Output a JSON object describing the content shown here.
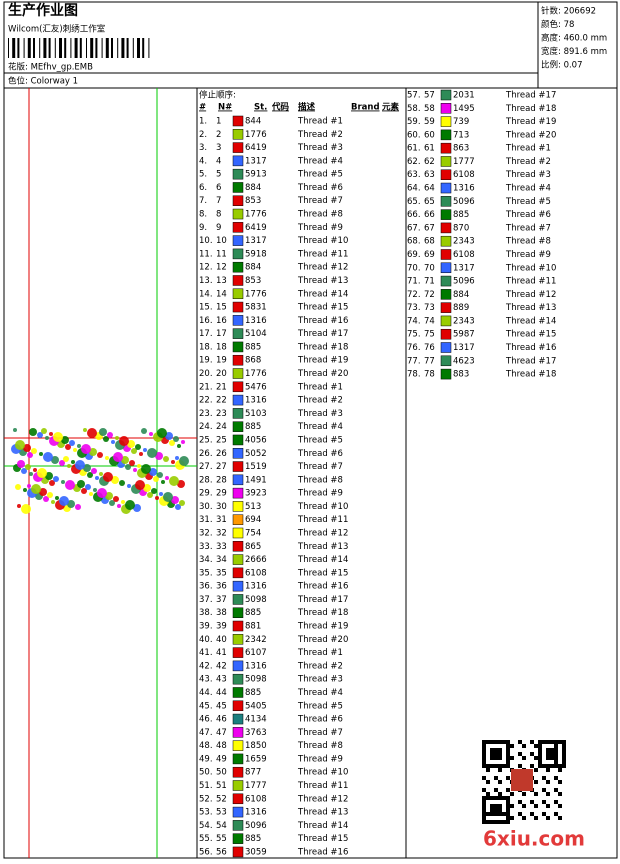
{
  "header": {
    "title": "生产作业图",
    "studio": "Wilcom(汇友)刺绣工作室",
    "design": "花版: MEfhv_gp.EMB",
    "colorway": "色位: Colorway 1"
  },
  "stats": [
    "针数: 206692",
    "颜色: 78",
    "高度: 460.0 mm",
    "宽度: 891.6 mm",
    "比例: 0.07"
  ],
  "table": {
    "caption": "停止顺序:",
    "columns": [
      "#",
      "N#",
      "St.",
      "代码",
      "描述",
      "Brand",
      "元素"
    ],
    "rows": [
      [
        "1.",
        "1",
        "844",
        "Thread #1",
        "#e00000"
      ],
      [
        "2.",
        "2",
        "1776",
        "Thread #2",
        "#99cc00"
      ],
      [
        "3.",
        "3",
        "6419",
        "Thread #3",
        "#e00000"
      ],
      [
        "4.",
        "4",
        "1317",
        "Thread #4",
        "#3366ff"
      ],
      [
        "5.",
        "5",
        "5913",
        "Thread #5",
        "#2e8b57"
      ],
      [
        "6.",
        "6",
        "884",
        "Thread #6",
        "#007a00"
      ],
      [
        "7.",
        "7",
        "853",
        "Thread #7",
        "#e00000"
      ],
      [
        "8.",
        "8",
        "1776",
        "Thread #8",
        "#99cc00"
      ],
      [
        "9.",
        "9",
        "6419",
        "Thread #9",
        "#e00000"
      ],
      [
        "10.",
        "10",
        "1317",
        "Thread #10",
        "#3366ff"
      ],
      [
        "11.",
        "11",
        "5918",
        "Thread #11",
        "#2e8b57"
      ],
      [
        "12.",
        "12",
        "884",
        "Thread #12",
        "#007a00"
      ],
      [
        "13.",
        "13",
        "853",
        "Thread #13",
        "#e00000"
      ],
      [
        "14.",
        "14",
        "1776",
        "Thread #14",
        "#99cc00"
      ],
      [
        "15.",
        "15",
        "5831",
        "Thread #15",
        "#e00000"
      ],
      [
        "16.",
        "16",
        "1316",
        "Thread #16",
        "#3366ff"
      ],
      [
        "17.",
        "17",
        "5104",
        "Thread #17",
        "#2e8b57"
      ],
      [
        "18.",
        "18",
        "885",
        "Thread #18",
        "#007a00"
      ],
      [
        "19.",
        "19",
        "868",
        "Thread #19",
        "#e00000"
      ],
      [
        "20.",
        "20",
        "1776",
        "Thread #20",
        "#99cc00"
      ],
      [
        "21.",
        "21",
        "5476",
        "Thread #1",
        "#e00000"
      ],
      [
        "22.",
        "22",
        "1316",
        "Thread #2",
        "#3366ff"
      ],
      [
        "23.",
        "23",
        "5103",
        "Thread #3",
        "#2e8b57"
      ],
      [
        "24.",
        "24",
        "885",
        "Thread #4",
        "#007a00"
      ],
      [
        "25.",
        "25",
        "4056",
        "Thread #5",
        "#007a00"
      ],
      [
        "26.",
        "26",
        "5052",
        "Thread #6",
        "#3366ff"
      ],
      [
        "27.",
        "27",
        "1519",
        "Thread #7",
        "#e00000"
      ],
      [
        "28.",
        "28",
        "1491",
        "Thread #8",
        "#3366ff"
      ],
      [
        "29.",
        "29",
        "3923",
        "Thread #9",
        "#ee00ee"
      ],
      [
        "30.",
        "30",
        "513",
        "Thread #10",
        "#ffff00"
      ],
      [
        "31.",
        "31",
        "694",
        "Thread #11",
        "#ff9900"
      ],
      [
        "32.",
        "32",
        "754",
        "Thread #12",
        "#ffff00"
      ],
      [
        "33.",
        "33",
        "865",
        "Thread #13",
        "#e00000"
      ],
      [
        "34.",
        "34",
        "2666",
        "Thread #14",
        "#99cc00"
      ],
      [
        "35.",
        "35",
        "6108",
        "Thread #15",
        "#e00000"
      ],
      [
        "36.",
        "36",
        "1316",
        "Thread #16",
        "#3366ff"
      ],
      [
        "37.",
        "37",
        "5098",
        "Thread #17",
        "#2e8b57"
      ],
      [
        "38.",
        "38",
        "885",
        "Thread #18",
        "#007a00"
      ],
      [
        "39.",
        "39",
        "881",
        "Thread #19",
        "#e00000"
      ],
      [
        "40.",
        "40",
        "2342",
        "Thread #20",
        "#99cc00"
      ],
      [
        "41.",
        "41",
        "6107",
        "Thread #1",
        "#e00000"
      ],
      [
        "42.",
        "42",
        "1316",
        "Thread #2",
        "#3366ff"
      ],
      [
        "43.",
        "43",
        "5098",
        "Thread #3",
        "#2e8b57"
      ],
      [
        "44.",
        "44",
        "885",
        "Thread #4",
        "#007a00"
      ],
      [
        "45.",
        "45",
        "5405",
        "Thread #5",
        "#e00000"
      ],
      [
        "46.",
        "46",
        "4134",
        "Thread #6",
        "#1b7f7f"
      ],
      [
        "47.",
        "47",
        "3763",
        "Thread #7",
        "#ee00ee"
      ],
      [
        "48.",
        "48",
        "1850",
        "Thread #8",
        "#ffff00"
      ],
      [
        "49.",
        "49",
        "1659",
        "Thread #9",
        "#007a00"
      ],
      [
        "50.",
        "50",
        "877",
        "Thread #10",
        "#e00000"
      ],
      [
        "51.",
        "51",
        "1777",
        "Thread #11",
        "#99cc00"
      ],
      [
        "52.",
        "52",
        "6108",
        "Thread #12",
        "#e00000"
      ],
      [
        "53.",
        "53",
        "1316",
        "Thread #13",
        "#3366ff"
      ],
      [
        "54.",
        "54",
        "5096",
        "Thread #14",
        "#2e8b57"
      ],
      [
        "55.",
        "55",
        "885",
        "Thread #15",
        "#007a00"
      ],
      [
        "56.",
        "56",
        "3059",
        "Thread #16",
        "#e00000"
      ],
      [
        "57.",
        "57",
        "2031",
        "Thread #17",
        "#2e8b57"
      ],
      [
        "58.",
        "58",
        "1495",
        "Thread #18",
        "#ee00ee"
      ],
      [
        "59.",
        "59",
        "739",
        "Thread #19",
        "#ffff00"
      ],
      [
        "60.",
        "60",
        "713",
        "Thread #20",
        "#007a00"
      ],
      [
        "61.",
        "61",
        "863",
        "Thread #1",
        "#e00000"
      ],
      [
        "62.",
        "62",
        "1777",
        "Thread #2",
        "#99cc00"
      ],
      [
        "63.",
        "63",
        "6108",
        "Thread #3",
        "#e00000"
      ],
      [
        "64.",
        "64",
        "1316",
        "Thread #4",
        "#3366ff"
      ],
      [
        "65.",
        "65",
        "5096",
        "Thread #5",
        "#2e8b57"
      ],
      [
        "66.",
        "66",
        "885",
        "Thread #6",
        "#007a00"
      ],
      [
        "67.",
        "67",
        "870",
        "Thread #7",
        "#e00000"
      ],
      [
        "68.",
        "68",
        "2343",
        "Thread #8",
        "#99cc00"
      ],
      [
        "69.",
        "69",
        "6108",
        "Thread #9",
        "#e00000"
      ],
      [
        "70.",
        "70",
        "1317",
        "Thread #10",
        "#3366ff"
      ],
      [
        "71.",
        "71",
        "5096",
        "Thread #11",
        "#2e8b57"
      ],
      [
        "72.",
        "72",
        "884",
        "Thread #12",
        "#007a00"
      ],
      [
        "73.",
        "73",
        "889",
        "Thread #13",
        "#e00000"
      ],
      [
        "74.",
        "74",
        "2343",
        "Thread #14",
        "#99cc00"
      ],
      [
        "75.",
        "75",
        "5987",
        "Thread #15",
        "#e00000"
      ],
      [
        "76.",
        "76",
        "1317",
        "Thread #16",
        "#3366ff"
      ],
      [
        "77.",
        "77",
        "4623",
        "Thread #17",
        "#2e8b57"
      ],
      [
        "78.",
        "78",
        "883",
        "Thread #18",
        "#007a00"
      ]
    ]
  },
  "watermark": "6xiu.com"
}
